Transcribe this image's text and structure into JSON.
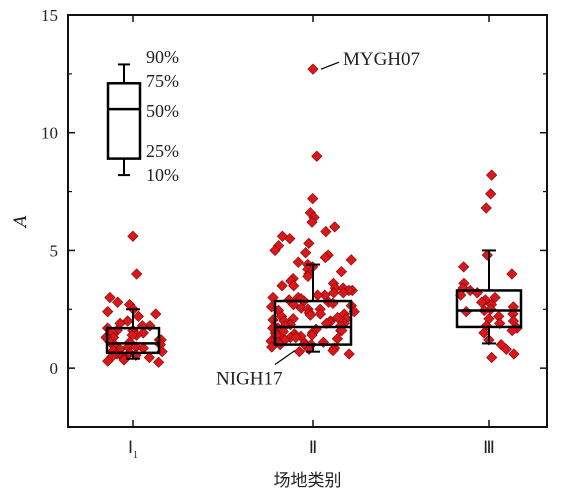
{
  "chart_data": {
    "type": "box",
    "xlabel": "场地类别",
    "ylabel": "A",
    "ylim": [
      -2.5,
      15
    ],
    "yticks": [
      0,
      5,
      10,
      15
    ],
    "categories": [
      "Ⅰ",
      "Ⅱ",
      "Ⅲ"
    ],
    "category_subscripts": [
      "1",
      "",
      ""
    ],
    "marker_color": "#d7191c",
    "marker_stroke": "#8b0000",
    "boxes": [
      {
        "category": "Ⅰ",
        "p10": 0.4,
        "p25": 0.65,
        "p50": 1.05,
        "p75": 1.7,
        "p90": 2.5
      },
      {
        "category": "Ⅱ",
        "p10": 0.7,
        "p25": 1.0,
        "p50": 1.75,
        "p75": 2.85,
        "p90": 4.4
      },
      {
        "category": "Ⅲ",
        "p10": 1.05,
        "p25": 1.75,
        "p50": 2.45,
        "p75": 3.3,
        "p90": 5.0
      }
    ],
    "points": [
      {
        "group": 0,
        "values": [
          5.6,
          4.0,
          3.0,
          2.8,
          2.7,
          2.5,
          2.4,
          2.3,
          2.2,
          2.0,
          1.9,
          1.8,
          1.8,
          1.7,
          1.6,
          1.6,
          1.5,
          1.5,
          1.4,
          1.4,
          1.3,
          1.3,
          1.2,
          1.2,
          1.1,
          1.1,
          1.0,
          1.0,
          0.9,
          0.9,
          0.85,
          0.8,
          0.75,
          0.7,
          0.65,
          0.6,
          0.55,
          0.5,
          0.5,
          0.45,
          0.4,
          0.35,
          0.3,
          0.25
        ]
      },
      {
        "group": 1,
        "values": [
          12.7,
          9.0,
          7.2,
          6.6,
          6.4,
          6.2,
          6.0,
          5.8,
          5.6,
          5.5,
          5.3,
          5.2,
          5.0,
          4.9,
          4.8,
          4.7,
          4.6,
          4.5,
          4.4,
          4.3,
          4.2,
          4.1,
          4.0,
          3.9,
          3.8,
          3.7,
          3.6,
          3.5,
          3.5,
          3.4,
          3.4,
          3.3,
          3.3,
          3.2,
          3.2,
          3.1,
          3.1,
          3.0,
          3.0,
          2.95,
          2.9,
          2.85,
          2.8,
          2.75,
          2.7,
          2.65,
          2.6,
          2.55,
          2.5,
          2.5,
          2.45,
          2.4,
          2.35,
          2.3,
          2.3,
          2.25,
          2.2,
          2.15,
          2.1,
          2.1,
          2.05,
          2.0,
          2.0,
          1.95,
          1.9,
          1.9,
          1.85,
          1.8,
          1.8,
          1.75,
          1.7,
          1.7,
          1.65,
          1.6,
          1.6,
          1.55,
          1.5,
          1.5,
          1.45,
          1.4,
          1.4,
          1.35,
          1.3,
          1.3,
          1.25,
          1.2,
          1.2,
          1.15,
          1.1,
          1.1,
          1.05,
          1.0,
          1.0,
          0.95,
          0.9,
          0.85,
          0.8,
          0.75,
          0.7,
          0.6
        ]
      },
      {
        "group": 2,
        "values": [
          8.2,
          7.4,
          6.8,
          4.8,
          4.3,
          4.0,
          3.6,
          3.4,
          3.3,
          3.2,
          3.1,
          3.0,
          2.9,
          2.8,
          2.7,
          2.6,
          2.5,
          2.45,
          2.4,
          2.3,
          2.2,
          2.1,
          2.0,
          1.9,
          1.8,
          1.7,
          1.6,
          1.5,
          1.2,
          1.0,
          0.8,
          0.6,
          0.45
        ]
      }
    ],
    "annotations": [
      {
        "text": "MYGH07",
        "group": 1,
        "value": 12.7
      },
      {
        "text": "NIGH17",
        "group": 1,
        "value": 0.75
      }
    ],
    "legend": {
      "labels": [
        "90%",
        "75%",
        "50%",
        "25%",
        "10%"
      ],
      "values": [
        12.9,
        12.1,
        11.0,
        8.9,
        8.2
      ]
    }
  }
}
